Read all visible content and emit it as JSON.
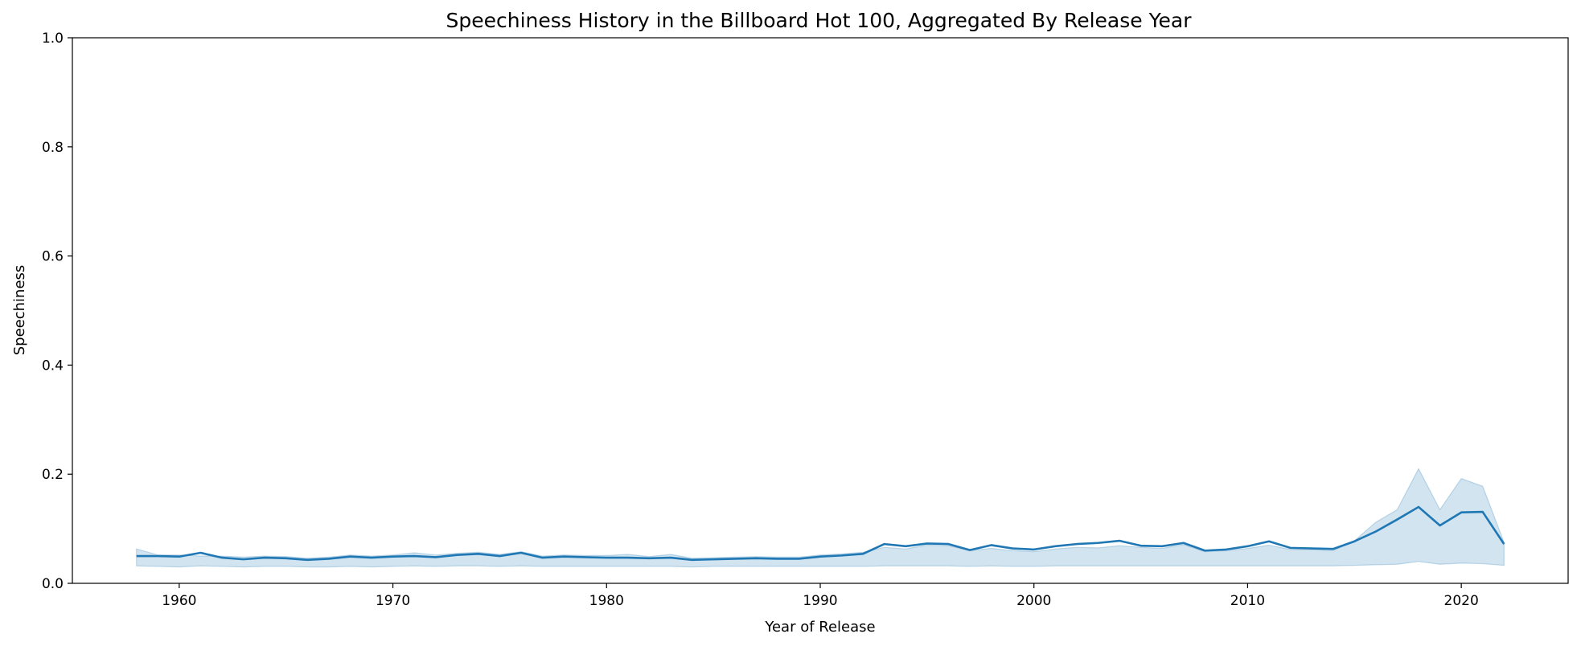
{
  "chart_data": {
    "type": "line",
    "title": "Speechiness History in the Billboard Hot 100, Aggregated By Release Year",
    "xlabel": "Year of Release",
    "ylabel": "Speechiness",
    "xlim": [
      1955,
      2025
    ],
    "ylim": [
      0,
      1
    ],
    "xticks": [
      1960,
      1970,
      1980,
      1990,
      2000,
      2010,
      2020
    ],
    "yticks": [
      0.0,
      0.2,
      0.4,
      0.6,
      0.8,
      1.0
    ],
    "ytick_labels": [
      "0.0",
      "0.2",
      "0.4",
      "0.6",
      "0.8",
      "1.0"
    ],
    "grid": false,
    "line_color": "#1f77b4",
    "band_color": "#1f77b4",
    "series": [
      {
        "x": [
          1958,
          1959,
          1960,
          1961,
          1962,
          1963,
          1964,
          1965,
          1966,
          1967,
          1968,
          1969,
          1970,
          1971,
          1972,
          1973,
          1974,
          1975,
          1976,
          1977,
          1978,
          1979,
          1980,
          1981,
          1982,
          1983,
          1984,
          1985,
          1986,
          1987,
          1988,
          1989,
          1990,
          1991,
          1992,
          1993,
          1994,
          1995,
          1996,
          1997,
          1998,
          1999,
          2000,
          2001,
          2002,
          2003,
          2004,
          2005,
          2006,
          2007,
          2008,
          2009,
          2010,
          2011,
          2012,
          2013,
          2014,
          2015,
          2016,
          2017,
          2018,
          2019,
          2020,
          2021,
          2022
        ],
        "y": [
          0.05,
          0.05,
          0.049,
          0.056,
          0.047,
          0.044,
          0.047,
          0.046,
          0.043,
          0.045,
          0.049,
          0.047,
          0.049,
          0.05,
          0.048,
          0.052,
          0.054,
          0.05,
          0.056,
          0.047,
          0.049,
          0.048,
          0.047,
          0.047,
          0.046,
          0.047,
          0.043,
          0.044,
          0.045,
          0.046,
          0.045,
          0.045,
          0.049,
          0.051,
          0.054,
          0.072,
          0.068,
          0.073,
          0.072,
          0.061,
          0.07,
          0.064,
          0.062,
          0.068,
          0.072,
          0.074,
          0.078,
          0.069,
          0.068,
          0.074,
          0.06,
          0.062,
          0.068,
          0.077,
          0.065,
          0.064,
          0.063,
          0.077,
          0.095,
          0.117,
          0.14,
          0.106,
          0.13,
          0.131,
          0.072
        ],
        "y_upper": [
          0.063,
          0.052,
          0.052,
          0.05,
          0.05,
          0.048,
          0.05,
          0.049,
          0.046,
          0.048,
          0.052,
          0.05,
          0.052,
          0.056,
          0.052,
          0.055,
          0.057,
          0.053,
          0.058,
          0.05,
          0.052,
          0.051,
          0.051,
          0.053,
          0.049,
          0.053,
          0.046,
          0.047,
          0.048,
          0.049,
          0.048,
          0.048,
          0.052,
          0.054,
          0.057,
          0.066,
          0.063,
          0.07,
          0.069,
          0.06,
          0.064,
          0.06,
          0.058,
          0.063,
          0.066,
          0.065,
          0.069,
          0.066,
          0.064,
          0.071,
          0.058,
          0.06,
          0.064,
          0.07,
          0.062,
          0.062,
          0.06,
          0.078,
          0.112,
          0.135,
          0.21,
          0.135,
          0.192,
          0.178,
          0.075
        ],
        "y_lower": [
          0.032,
          0.031,
          0.03,
          0.032,
          0.031,
          0.03,
          0.031,
          0.031,
          0.03,
          0.03,
          0.031,
          0.03,
          0.031,
          0.032,
          0.031,
          0.032,
          0.032,
          0.031,
          0.032,
          0.031,
          0.031,
          0.031,
          0.031,
          0.031,
          0.031,
          0.031,
          0.03,
          0.031,
          0.031,
          0.031,
          0.031,
          0.031,
          0.031,
          0.031,
          0.031,
          0.032,
          0.032,
          0.032,
          0.032,
          0.031,
          0.032,
          0.031,
          0.031,
          0.032,
          0.032,
          0.032,
          0.032,
          0.032,
          0.032,
          0.032,
          0.032,
          0.032,
          0.032,
          0.032,
          0.032,
          0.032,
          0.032,
          0.033,
          0.034,
          0.035,
          0.04,
          0.035,
          0.037,
          0.036,
          0.033
        ]
      }
    ]
  }
}
